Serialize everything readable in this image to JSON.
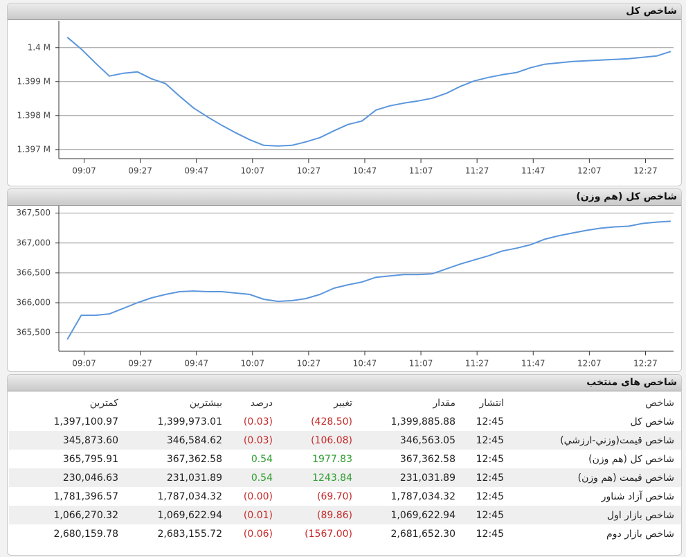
{
  "chart_data": [
    {
      "type": "line",
      "title": "شاخص کل",
      "color": "#5b96dc",
      "x": [
        "09:01",
        "09:06",
        "09:11",
        "09:16",
        "09:21",
        "09:26",
        "09:31",
        "09:36",
        "09:41",
        "09:46",
        "09:51",
        "09:56",
        "10:01",
        "10:06",
        "10:11",
        "10:16",
        "10:21",
        "10:26",
        "10:31",
        "10:36",
        "10:41",
        "10:46",
        "10:51",
        "10:56",
        "11:01",
        "11:06",
        "11:11",
        "11:16",
        "11:21",
        "11:26",
        "11:31",
        "11:36",
        "11:41",
        "11:46",
        "11:51",
        "11:56",
        "12:01",
        "12:06",
        "12:11",
        "12:16",
        "12:21",
        "12:26",
        "12:31",
        "12:36"
      ],
      "values": [
        1400306,
        1399959,
        1399551,
        1399163,
        1399245,
        1399286,
        1399082,
        1398939,
        1398571,
        1398224,
        1397959,
        1397714,
        1397490,
        1397286,
        1397122,
        1397101,
        1397122,
        1397224,
        1397347,
        1397551,
        1397735,
        1397837,
        1398163,
        1398286,
        1398367,
        1398429,
        1398510,
        1398653,
        1398857,
        1399020,
        1399122,
        1399204,
        1399265,
        1399408,
        1399510,
        1399551,
        1399592,
        1399612,
        1399633,
        1399653,
        1399673,
        1399714,
        1399755,
        1399886
      ],
      "xlim": [
        "08:58",
        "12:37"
      ],
      "xticks": [
        "09:07",
        "09:27",
        "09:47",
        "10:07",
        "10:27",
        "10:47",
        "11:07",
        "11:27",
        "11:47",
        "12:07",
        "12:27"
      ],
      "ylim": [
        1396750,
        1400750
      ],
      "yticks": [
        {
          "value": 1397000,
          "label": "1.397 M"
        },
        {
          "value": 1398000,
          "label": "1.398 M"
        },
        {
          "value": 1399000,
          "label": "1.399 M"
        },
        {
          "value": 1400000,
          "label": "1.4 M"
        }
      ],
      "grid": true
    },
    {
      "type": "line",
      "title": "شاخص کل (هم وزن)",
      "color": "#5b96dc",
      "x": [
        "09:01",
        "09:06",
        "09:11",
        "09:16",
        "09:21",
        "09:26",
        "09:31",
        "09:36",
        "09:41",
        "09:46",
        "09:51",
        "09:56",
        "10:01",
        "10:06",
        "10:11",
        "10:16",
        "10:21",
        "10:26",
        "10:31",
        "10:36",
        "10:41",
        "10:46",
        "10:51",
        "10:56",
        "11:01",
        "11:06",
        "11:11",
        "11:16",
        "11:21",
        "11:26",
        "11:31",
        "11:36",
        "11:41",
        "11:46",
        "11:51",
        "11:56",
        "12:01",
        "12:06",
        "12:11",
        "12:16",
        "12:21",
        "12:26",
        "12:31",
        "12:36"
      ],
      "values": [
        365385,
        365790,
        365790,
        365813,
        365906,
        366000,
        366081,
        366139,
        366185,
        366196,
        366185,
        366185,
        366162,
        366139,
        366058,
        366023,
        366035,
        366069,
        366139,
        366243,
        366300,
        366347,
        366427,
        366450,
        366473,
        366473,
        366485,
        366566,
        366647,
        366716,
        366785,
        366866,
        366912,
        366970,
        367062,
        367120,
        367166,
        367212,
        367247,
        367270,
        367281,
        367327,
        367350,
        367363
      ],
      "xlim": [
        "08:58",
        "12:37"
      ],
      "xticks": [
        "09:07",
        "09:27",
        "09:47",
        "10:07",
        "10:27",
        "10:47",
        "11:07",
        "11:27",
        "11:47",
        "12:07",
        "12:27"
      ],
      "ylim": [
        365200,
        367600
      ],
      "yticks": [
        {
          "value": 365500,
          "label": "365,500"
        },
        {
          "value": 366000,
          "label": "366,000"
        },
        {
          "value": 366500,
          "label": "366,500"
        },
        {
          "value": 367000,
          "label": "367,000"
        },
        {
          "value": 367500,
          "label": "367,500"
        }
      ],
      "grid": true
    }
  ],
  "table": {
    "title": "شاخص های منتخب",
    "headers": [
      "شاخص",
      "انتشار",
      "مقدار",
      "تغییر",
      "درصد",
      "بیشترین",
      "کمترین"
    ],
    "rows": [
      [
        "شاخص کل",
        "12:45",
        "1,399,885.88",
        "(428.50)",
        "(0.03)",
        "1,399,973.01",
        "1,397,100.97"
      ],
      [
        "شاخص قیمت(وزني-ارزشي)",
        "12:45",
        "346,563.05",
        "(106.08)",
        "(0.03)",
        "346,584.62",
        "345,873.60"
      ],
      [
        "شاخص کل (هم وزن)",
        "12:45",
        "367,362.58",
        "1977.83",
        "0.54",
        "367,362.58",
        "365,795.91"
      ],
      [
        "شاخص قیمت (هم وزن)",
        "12:45",
        "231,031.89",
        "1243.84",
        "0.54",
        "231,031.89",
        "230,046.63"
      ],
      [
        "شاخص آزاد شناور",
        "12:45",
        "1,787,034.32",
        "(69.70)",
        "(0.00)",
        "1,787,034.32",
        "1,781,396.57"
      ],
      [
        "شاخص بازار اول",
        "12:45",
        "1,069,622.94",
        "(89.86)",
        "(0.01)",
        "1,069,622.94",
        "1,066,270.32"
      ],
      [
        "شاخص بازار دوم",
        "12:45",
        "2,681,652.30",
        "(1567.00)",
        "(0.06)",
        "2,683,155.72",
        "2,680,159.78"
      ]
    ]
  }
}
